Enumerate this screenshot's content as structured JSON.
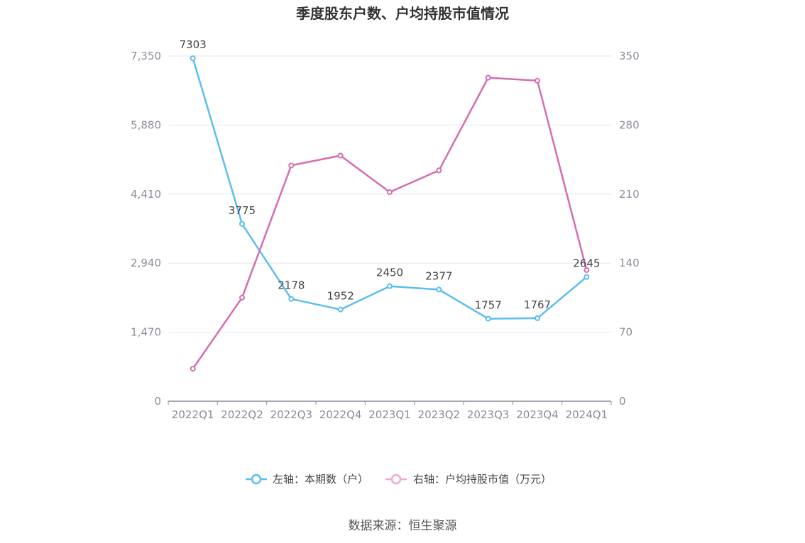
{
  "chart_data": {
    "type": "line",
    "title": "季度股东户数、户均持股市值情况",
    "categories": [
      "2022Q1",
      "2022Q2",
      "2022Q3",
      "2022Q4",
      "2023Q1",
      "2023Q2",
      "2023Q3",
      "2023Q4",
      "2024Q1"
    ],
    "y_left": {
      "ticks": [
        "0",
        "1,470",
        "2,940",
        "4,410",
        "5,880",
        "7,350"
      ],
      "ylim": [
        0,
        7350
      ]
    },
    "y_right": {
      "ticks": [
        "0",
        "70",
        "140",
        "210",
        "280",
        "350"
      ],
      "ylim": [
        0,
        350
      ]
    },
    "series": [
      {
        "name": "左轴：本期数（户）",
        "axis": "left",
        "color": "#5bbdf0",
        "values": [
          7303,
          3775,
          2178,
          1952,
          2450,
          2377,
          1757,
          1767,
          2645
        ],
        "labels": [
          "7303",
          "3775",
          "2178",
          "1952",
          "2450",
          "2377",
          "1757",
          "1767",
          "2645"
        ]
      },
      {
        "name": "右轴：户均持股市值（万元）",
        "axis": "right",
        "color": "#d46db0",
        "values": [
          33,
          105,
          239,
          249,
          212,
          234,
          328,
          325,
          133
        ]
      }
    ],
    "grid": true,
    "legend_position": "bottom",
    "source": "数据来源：恒生聚源"
  }
}
